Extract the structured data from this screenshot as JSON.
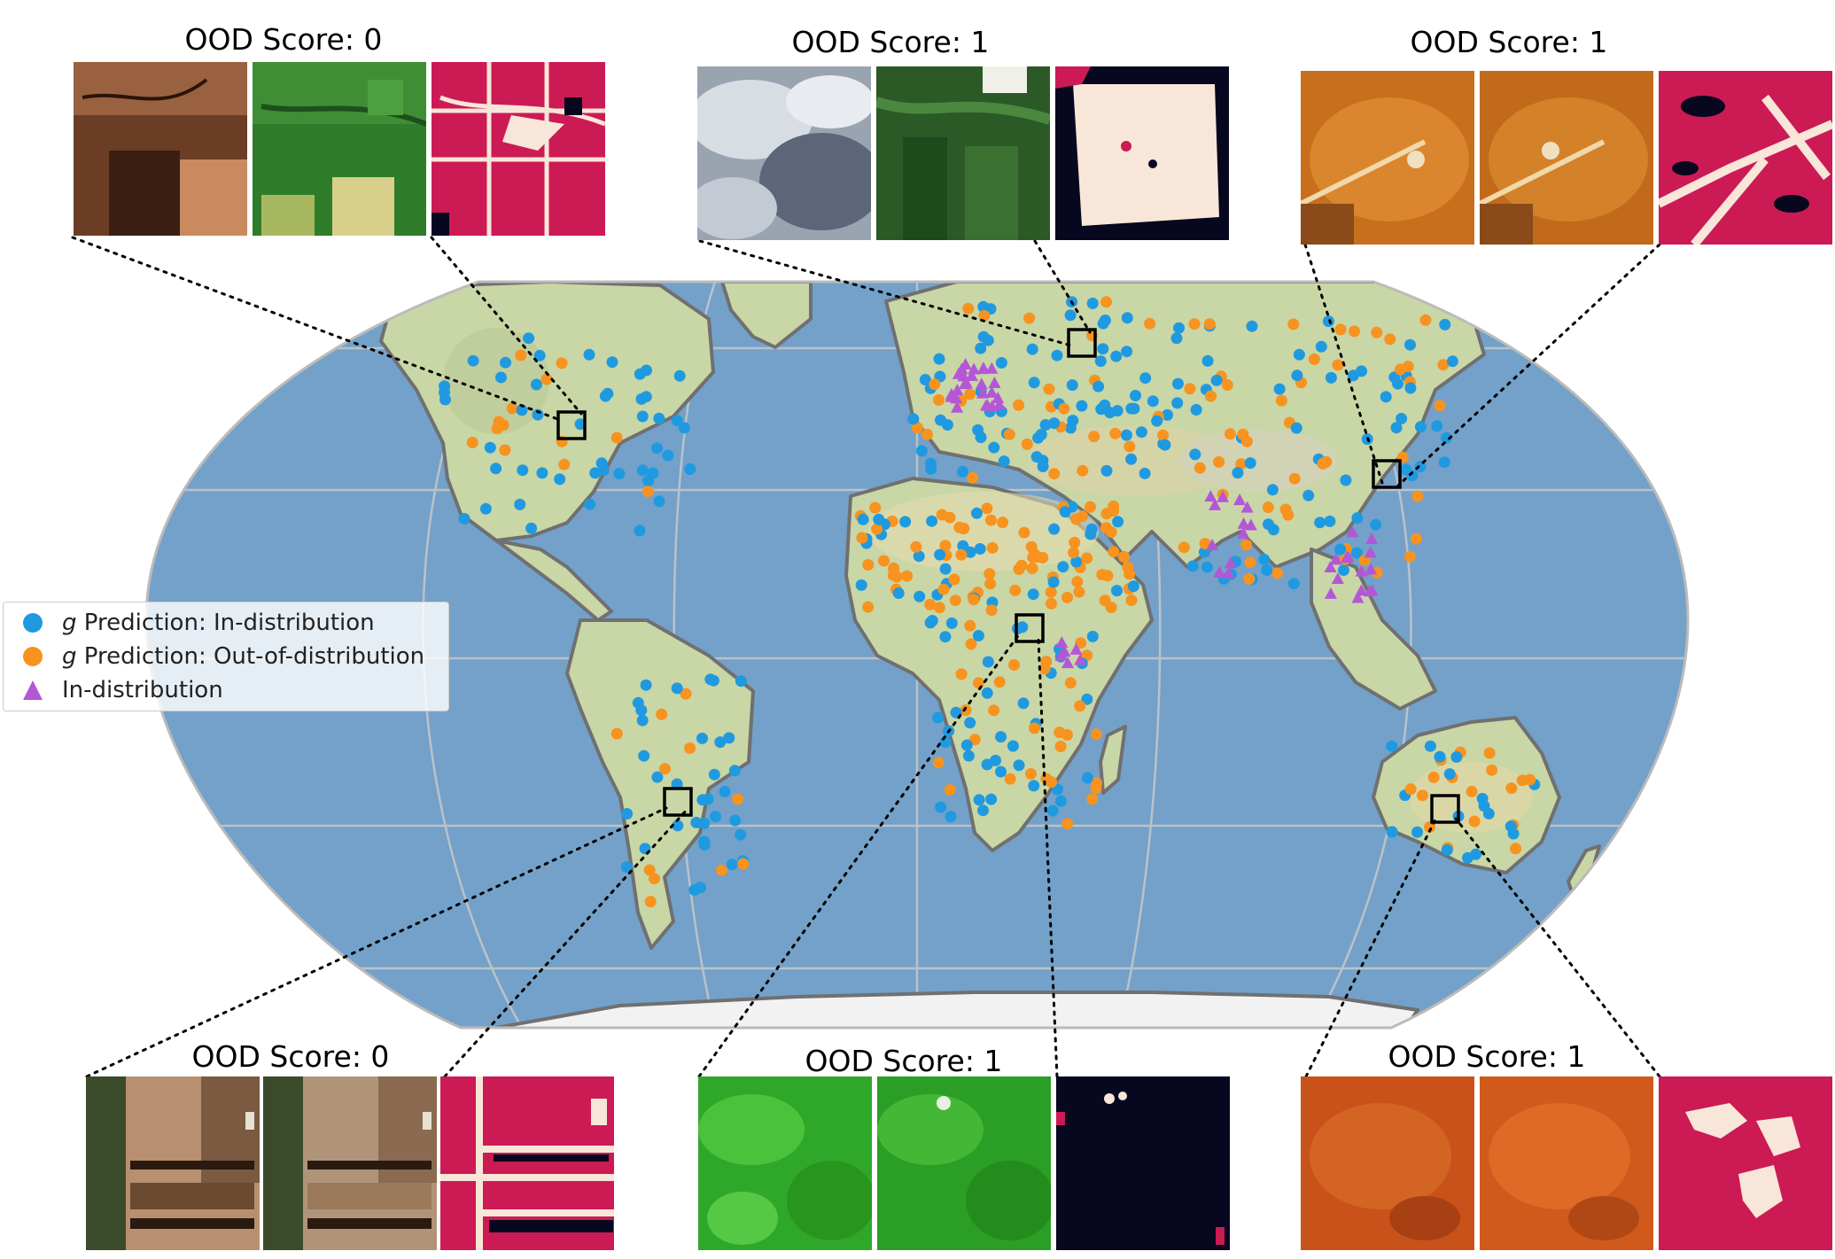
{
  "panels": [
    {
      "id": "top-left",
      "title": "OOD Score: 0"
    },
    {
      "id": "top-middle",
      "title": "OOD Score: 1"
    },
    {
      "id": "top-right",
      "title": "OOD Score: 1"
    },
    {
      "id": "bottom-left",
      "title": "OOD Score: 0"
    },
    {
      "id": "bottom-middle",
      "title": "OOD Score: 1"
    },
    {
      "id": "bottom-right",
      "title": "OOD Score: 1"
    }
  ],
  "legend": {
    "items": [
      {
        "symbol": "g",
        "text": " Prediction: In-distribution",
        "marker": "circle",
        "color": "#1f9ae0"
      },
      {
        "symbol": "g",
        "text": " Prediction: Out-of-distribution",
        "marker": "circle",
        "color": "#f7931e"
      },
      {
        "symbol": "",
        "text": "In-distribution",
        "marker": "triangle",
        "color": "#b457d6"
      }
    ]
  },
  "colors": {
    "ocean": "#6f9dc7",
    "land": "#c9d6a6",
    "in_distribution": "#1f9ae0",
    "out_of_distribution": "#f7931e",
    "triangle": "#b457d6",
    "mask_crop": "#cc1a55",
    "mask_noncrop": "#f8e6d8",
    "mask_background": "#07071f"
  }
}
